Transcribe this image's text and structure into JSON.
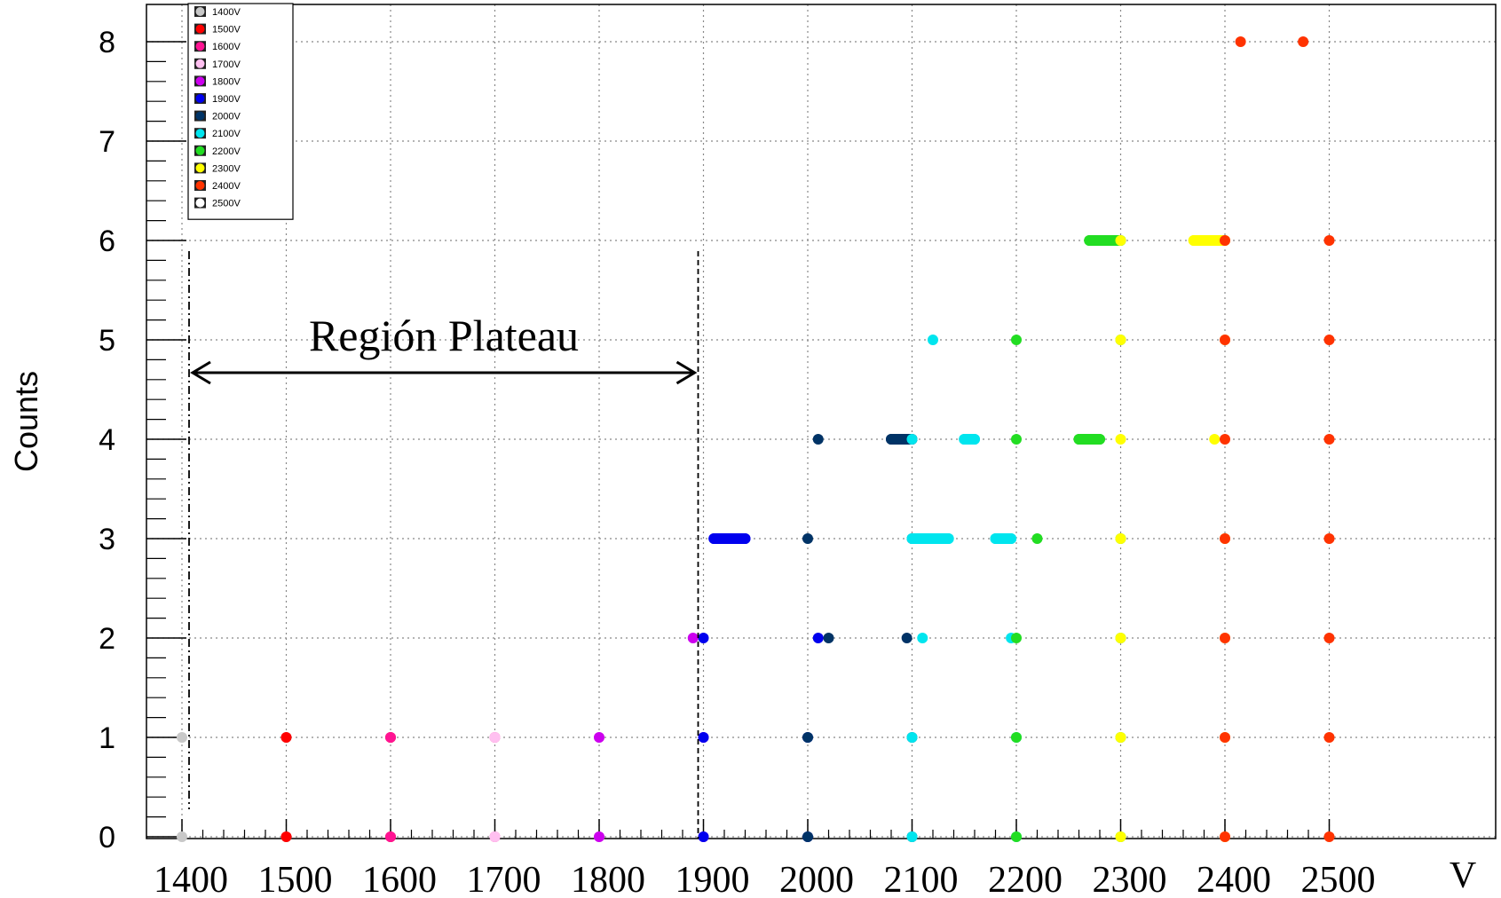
{
  "chart_data": {
    "type": "scatter",
    "title": "",
    "xlabel": "V",
    "ylabel": "Counts",
    "xlim": [
      1400,
      2500
    ],
    "ylim": [
      0,
      8
    ],
    "x_ticks": [
      "1400",
      "1500",
      "1600",
      "1700",
      "1800",
      "1900",
      "2000",
      "2100",
      "2200",
      "2300",
      "2400",
      "2500"
    ],
    "y_ticks": [
      "0",
      "1",
      "2",
      "3",
      "4",
      "5",
      "6",
      "7",
      "8"
    ],
    "grid": true,
    "legend_position": "top-left",
    "annotation": {
      "text": "Región Plateau",
      "x_start": 1400,
      "x_end": 1900
    },
    "series": [
      {
        "name": "1400V",
        "color": "#c8c8c8",
        "points": [
          [
            1400,
            0
          ],
          [
            1500,
            0
          ],
          [
            1400,
            1
          ],
          [
            1500,
            1
          ]
        ]
      },
      {
        "name": "1500V",
        "color": "#ff0000",
        "points": [
          [
            1500,
            0
          ],
          [
            1600,
            0
          ],
          [
            1500,
            1
          ],
          [
            1600,
            1
          ]
        ]
      },
      {
        "name": "1600V",
        "color": "#ff1493",
        "points": [
          [
            1600,
            0
          ],
          [
            1700,
            0
          ],
          [
            1600,
            1
          ],
          [
            1700,
            1
          ]
        ]
      },
      {
        "name": "1700V",
        "color": "#ffc0f0",
        "points": [
          [
            1700,
            0
          ],
          [
            1800,
            0
          ],
          [
            1700,
            1
          ],
          [
            1800,
            1
          ]
        ]
      },
      {
        "name": "1800V",
        "color": "#cc00ee",
        "points": [
          [
            1800,
            0
          ],
          [
            1900,
            0
          ],
          [
            1800,
            1
          ],
          [
            1900,
            1
          ],
          [
            1890,
            2
          ]
        ]
      },
      {
        "name": "1900V",
        "color": "#0000ee",
        "points": [
          [
            1900,
            0
          ],
          [
            2000,
            0
          ],
          [
            1900,
            1
          ],
          [
            2000,
            1
          ],
          [
            1900,
            2
          ],
          [
            2010,
            2
          ],
          [
            1910,
            3
          ],
          [
            1925,
            3
          ],
          [
            1940,
            3
          ]
        ]
      },
      {
        "name": "2000V",
        "color": "#003366",
        "points": [
          [
            2000,
            0
          ],
          [
            2100,
            0
          ],
          [
            2000,
            1
          ],
          [
            2100,
            1
          ],
          [
            2020,
            2
          ],
          [
            2095,
            2
          ],
          [
            2000,
            3
          ],
          [
            2100,
            3
          ],
          [
            2010,
            4
          ],
          [
            2080,
            4
          ],
          [
            2100,
            4
          ]
        ]
      },
      {
        "name": "2100V",
        "color": "#00e5ee",
        "points": [
          [
            2100,
            0
          ],
          [
            2200,
            0
          ],
          [
            2100,
            1
          ],
          [
            2200,
            1
          ],
          [
            2110,
            2
          ],
          [
            2195,
            2
          ],
          [
            2100,
            3
          ],
          [
            2135,
            3
          ],
          [
            2180,
            3
          ],
          [
            2195,
            3
          ],
          [
            2100,
            4
          ],
          [
            2150,
            4
          ],
          [
            2160,
            4
          ],
          [
            2120,
            5
          ]
        ]
      },
      {
        "name": "2200V",
        "color": "#22dd22",
        "points": [
          [
            2200,
            0
          ],
          [
            2300,
            0
          ],
          [
            2200,
            1
          ],
          [
            2300,
            1
          ],
          [
            2200,
            2
          ],
          [
            2300,
            2
          ],
          [
            2220,
            3
          ],
          [
            2300,
            3
          ],
          [
            2200,
            4
          ],
          [
            2260,
            4
          ],
          [
            2280,
            4
          ],
          [
            2200,
            5
          ],
          [
            2300,
            5
          ],
          [
            2270,
            6
          ],
          [
            2300,
            6
          ]
        ]
      },
      {
        "name": "2300V",
        "color": "#ffff00",
        "points": [
          [
            2300,
            0
          ],
          [
            2400,
            0
          ],
          [
            2300,
            1
          ],
          [
            2400,
            1
          ],
          [
            2300,
            2
          ],
          [
            2400,
            2
          ],
          [
            2300,
            3
          ],
          [
            2400,
            3
          ],
          [
            2300,
            4
          ],
          [
            2390,
            4
          ],
          [
            2300,
            5
          ],
          [
            2400,
            5
          ],
          [
            2300,
            6
          ],
          [
            2370,
            6
          ],
          [
            2400,
            6
          ]
        ]
      },
      {
        "name": "2400V",
        "color": "#ff3300",
        "points": [
          [
            2400,
            0
          ],
          [
            2500,
            0
          ],
          [
            2400,
            1
          ],
          [
            2500,
            1
          ],
          [
            2400,
            2
          ],
          [
            2500,
            2
          ],
          [
            2400,
            3
          ],
          [
            2500,
            3
          ],
          [
            2400,
            4
          ],
          [
            2500,
            4
          ],
          [
            2400,
            5
          ],
          [
            2500,
            5
          ],
          [
            2400,
            6
          ],
          [
            2500,
            6
          ],
          [
            2415,
            8
          ],
          [
            2475,
            8
          ]
        ]
      },
      {
        "name": "2500V",
        "color": "#ffffff",
        "points": []
      }
    ]
  }
}
